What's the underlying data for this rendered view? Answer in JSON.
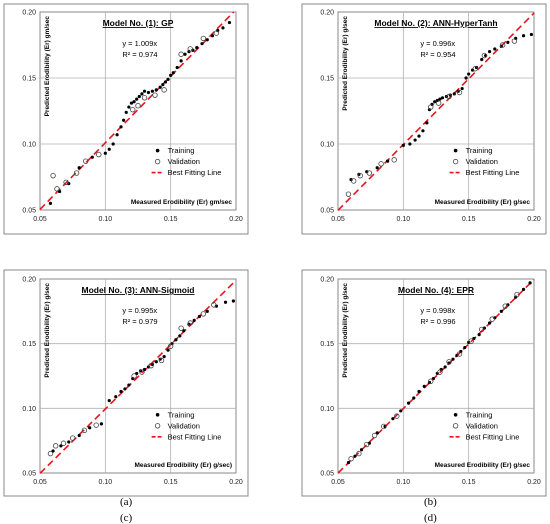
{
  "chart_data": [
    {
      "panel": "(a)",
      "type": "scatter",
      "title": "Model No. (1): GP",
      "xlabel": "Measured Erodibility (Er) gm/sec",
      "ylabel": "Predicted Erodibility (Er) gm/sec",
      "xlim": [
        0.05,
        0.2
      ],
      "ylim": [
        0.05,
        0.2
      ],
      "xticks": [
        "0.05",
        "0.10",
        "0.15",
        "0.20"
      ],
      "yticks": [
        "0.05",
        "0.10",
        "0.15",
        "0.20"
      ],
      "equation": "y = 1.009x",
      "r2": "R² = 0.974",
      "slope": 1.009,
      "grid": true,
      "legend": "bottom-right",
      "legend_entries": [
        "Training",
        "Validation",
        "Best Fitting Line"
      ],
      "series": [
        {
          "name": "Training",
          "marker": "filled",
          "points": [
            [
              0.058,
              0.055
            ],
            [
              0.065,
              0.064
            ],
            [
              0.072,
              0.07
            ],
            [
              0.08,
              0.082
            ],
            [
              0.09,
              0.09
            ],
            [
              0.1,
              0.093
            ],
            [
              0.103,
              0.096
            ],
            [
              0.106,
              0.1
            ],
            [
              0.109,
              0.107
            ],
            [
              0.112,
              0.113
            ],
            [
              0.114,
              0.118
            ],
            [
              0.116,
              0.124
            ],
            [
              0.118,
              0.128
            ],
            [
              0.12,
              0.131
            ],
            [
              0.122,
              0.132
            ],
            [
              0.124,
              0.134
            ],
            [
              0.126,
              0.136
            ],
            [
              0.128,
              0.138
            ],
            [
              0.13,
              0.14
            ],
            [
              0.133,
              0.139
            ],
            [
              0.136,
              0.14
            ],
            [
              0.139,
              0.141
            ],
            [
              0.142,
              0.143
            ],
            [
              0.144,
              0.145
            ],
            [
              0.146,
              0.147
            ],
            [
              0.148,
              0.149
            ],
            [
              0.15,
              0.152
            ],
            [
              0.152,
              0.154
            ],
            [
              0.155,
              0.158
            ],
            [
              0.158,
              0.163
            ],
            [
              0.161,
              0.168
            ],
            [
              0.164,
              0.17
            ],
            [
              0.167,
              0.171
            ],
            [
              0.17,
              0.173
            ],
            [
              0.174,
              0.176
            ],
            [
              0.178,
              0.179
            ],
            [
              0.182,
              0.182
            ],
            [
              0.186,
              0.186
            ],
            [
              0.19,
              0.188
            ],
            [
              0.195,
              0.192
            ]
          ]
        },
        {
          "name": "Validation",
          "marker": "hollow",
          "points": [
            [
              0.06,
              0.076
            ],
            [
              0.063,
              0.066
            ],
            [
              0.07,
              0.071
            ],
            [
              0.078,
              0.078
            ],
            [
              0.085,
              0.087
            ],
            [
              0.095,
              0.092
            ],
            [
              0.121,
              0.126
            ],
            [
              0.125,
              0.129
            ],
            [
              0.13,
              0.135
            ],
            [
              0.138,
              0.137
            ],
            [
              0.145,
              0.141
            ],
            [
              0.158,
              0.168
            ],
            [
              0.165,
              0.172
            ],
            [
              0.175,
              0.18
            ],
            [
              0.185,
              0.184
            ]
          ]
        }
      ]
    },
    {
      "panel": "(b)",
      "type": "scatter",
      "title": "Model No. (2): ANN-HyperTanh",
      "xlabel": "Measured Erodibility (Er) g/sec",
      "ylabel": "Predicted Erodibility (Er) g/sec",
      "xlim": [
        0.05,
        0.2
      ],
      "ylim": [
        0.05,
        0.2
      ],
      "xticks": [
        "0.05",
        "0.10",
        "0.15",
        "0.20"
      ],
      "yticks": [
        "0.05",
        "0.10",
        "0.15",
        "0.20"
      ],
      "equation": "y = 0.996x",
      "r2": "R² = 0.954",
      "slope": 0.996,
      "grid": true,
      "legend": "bottom-right",
      "legend_entries": [
        "Training",
        "Validation",
        "Best Fitting Line"
      ],
      "series": [
        {
          "name": "Training",
          "marker": "filled",
          "points": [
            [
              0.06,
              0.073
            ],
            [
              0.066,
              0.077
            ],
            [
              0.072,
              0.079
            ],
            [
              0.08,
              0.082
            ],
            [
              0.088,
              0.087
            ],
            [
              0.1,
              0.099
            ],
            [
              0.105,
              0.1
            ],
            [
              0.109,
              0.103
            ],
            [
              0.112,
              0.106
            ],
            [
              0.115,
              0.11
            ],
            [
              0.118,
              0.116
            ],
            [
              0.12,
              0.126
            ],
            [
              0.122,
              0.13
            ],
            [
              0.124,
              0.132
            ],
            [
              0.126,
              0.133
            ],
            [
              0.128,
              0.134
            ],
            [
              0.13,
              0.135
            ],
            [
              0.133,
              0.136
            ],
            [
              0.136,
              0.137
            ],
            [
              0.139,
              0.138
            ],
            [
              0.142,
              0.14
            ],
            [
              0.145,
              0.142
            ],
            [
              0.148,
              0.15
            ],
            [
              0.15,
              0.153
            ],
            [
              0.153,
              0.156
            ],
            [
              0.156,
              0.158
            ],
            [
              0.16,
              0.164
            ],
            [
              0.163,
              0.167
            ],
            [
              0.166,
              0.17
            ],
            [
              0.17,
              0.172
            ],
            [
              0.175,
              0.174
            ],
            [
              0.18,
              0.177
            ],
            [
              0.186,
              0.18
            ],
            [
              0.192,
              0.182
            ],
            [
              0.198,
              0.183
            ]
          ]
        },
        {
          "name": "Validation",
          "marker": "hollow",
          "points": [
            [
              0.058,
              0.062
            ],
            [
              0.062,
              0.072
            ],
            [
              0.067,
              0.076
            ],
            [
              0.074,
              0.078
            ],
            [
              0.083,
              0.085
            ],
            [
              0.093,
              0.088
            ],
            [
              0.121,
              0.128
            ],
            [
              0.127,
              0.131
            ],
            [
              0.135,
              0.136
            ],
            [
              0.143,
              0.139
            ],
            [
              0.155,
              0.157
            ],
            [
              0.162,
              0.167
            ],
            [
              0.176,
              0.175
            ],
            [
              0.185,
              0.178
            ]
          ]
        }
      ]
    },
    {
      "panel": "(c)",
      "type": "scatter",
      "title": "Model No. (3): ANN-Sigmoid",
      "xlabel": "Measured Erodibility (Er) g/sec)",
      "ylabel": "Predicted Erodibility (Er) g/sec",
      "xlim": [
        0.05,
        0.2
      ],
      "ylim": [
        0.05,
        0.2
      ],
      "xticks": [
        "0.05",
        "0.10",
        "0.15",
        "0.20"
      ],
      "yticks": [
        "0.05",
        "0.10",
        "0.15",
        "0.20"
      ],
      "equation": "y = 0.995x",
      "r2": "R² = 0.979",
      "slope": 0.995,
      "grid": true,
      "legend": "bottom-right",
      "legend_entries": [
        "Training",
        "Validation",
        "Best Fitting Line"
      ],
      "series": [
        {
          "name": "Training",
          "marker": "filled",
          "points": [
            [
              0.06,
              0.067
            ],
            [
              0.066,
              0.071
            ],
            [
              0.072,
              0.074
            ],
            [
              0.08,
              0.079
            ],
            [
              0.088,
              0.085
            ],
            [
              0.097,
              0.088
            ],
            [
              0.103,
              0.106
            ],
            [
              0.108,
              0.109
            ],
            [
              0.112,
              0.113
            ],
            [
              0.115,
              0.115
            ],
            [
              0.118,
              0.118
            ],
            [
              0.121,
              0.123
            ],
            [
              0.124,
              0.127
            ],
            [
              0.127,
              0.129
            ],
            [
              0.13,
              0.13
            ],
            [
              0.133,
              0.132
            ],
            [
              0.136,
              0.134
            ],
            [
              0.139,
              0.136
            ],
            [
              0.142,
              0.138
            ],
            [
              0.145,
              0.14
            ],
            [
              0.148,
              0.145
            ],
            [
              0.151,
              0.15
            ],
            [
              0.154,
              0.153
            ],
            [
              0.157,
              0.156
            ],
            [
              0.16,
              0.16
            ],
            [
              0.164,
              0.165
            ],
            [
              0.168,
              0.168
            ],
            [
              0.172,
              0.171
            ],
            [
              0.178,
              0.175
            ],
            [
              0.185,
              0.179
            ],
            [
              0.192,
              0.182
            ],
            [
              0.198,
              0.183
            ]
          ]
        },
        {
          "name": "Validation",
          "marker": "hollow",
          "points": [
            [
              0.058,
              0.065
            ],
            [
              0.062,
              0.071
            ],
            [
              0.068,
              0.073
            ],
            [
              0.075,
              0.077
            ],
            [
              0.084,
              0.083
            ],
            [
              0.093,
              0.087
            ],
            [
              0.122,
              0.125
            ],
            [
              0.128,
              0.128
            ],
            [
              0.135,
              0.133
            ],
            [
              0.143,
              0.137
            ],
            [
              0.15,
              0.148
            ],
            [
              0.158,
              0.162
            ],
            [
              0.165,
              0.166
            ],
            [
              0.175,
              0.173
            ],
            [
              0.183,
              0.18
            ]
          ]
        }
      ]
    },
    {
      "panel": "(d)",
      "type": "scatter",
      "title": "Model No. (4): EPR",
      "xlabel": "Measured Erodibility (Er) g/sec",
      "ylabel": "Predicted Erodibility (Er) g/sec",
      "xlim": [
        0.05,
        0.2
      ],
      "ylim": [
        0.05,
        0.2
      ],
      "xticks": [
        "0.05",
        "0.10",
        "0.15",
        "0.20"
      ],
      "yticks": [
        "0.05",
        "0.10",
        "0.15",
        "0.20"
      ],
      "equation": "y = 0.998x",
      "r2": "R² = 0.996",
      "slope": 0.998,
      "grid": true,
      "legend": "bottom-right",
      "legend_entries": [
        "Training",
        "Validation",
        "Best Fitting Line"
      ],
      "series": [
        {
          "name": "Training",
          "marker": "filled",
          "points": [
            [
              0.058,
              0.058
            ],
            [
              0.063,
              0.063
            ],
            [
              0.068,
              0.068
            ],
            [
              0.074,
              0.073
            ],
            [
              0.08,
              0.081
            ],
            [
              0.086,
              0.086
            ],
            [
              0.092,
              0.092
            ],
            [
              0.098,
              0.098
            ],
            [
              0.104,
              0.104
            ],
            [
              0.108,
              0.108
            ],
            [
              0.112,
              0.113
            ],
            [
              0.116,
              0.117
            ],
            [
              0.12,
              0.12
            ],
            [
              0.123,
              0.123
            ],
            [
              0.126,
              0.127
            ],
            [
              0.129,
              0.13
            ],
            [
              0.132,
              0.132
            ],
            [
              0.135,
              0.135
            ],
            [
              0.138,
              0.138
            ],
            [
              0.141,
              0.141
            ],
            [
              0.144,
              0.144
            ],
            [
              0.147,
              0.147
            ],
            [
              0.15,
              0.151
            ],
            [
              0.154,
              0.154
            ],
            [
              0.158,
              0.157
            ],
            [
              0.162,
              0.162
            ],
            [
              0.166,
              0.166
            ],
            [
              0.17,
              0.17
            ],
            [
              0.175,
              0.175
            ],
            [
              0.18,
              0.18
            ],
            [
              0.186,
              0.186
            ],
            [
              0.192,
              0.192
            ],
            [
              0.197,
              0.197
            ]
          ]
        },
        {
          "name": "Validation",
          "marker": "hollow",
          "points": [
            [
              0.06,
              0.061
            ],
            [
              0.066,
              0.065
            ],
            [
              0.072,
              0.072
            ],
            [
              0.078,
              0.079
            ],
            [
              0.085,
              0.086
            ],
            [
              0.095,
              0.094
            ],
            [
              0.121,
              0.121
            ],
            [
              0.128,
              0.128
            ],
            [
              0.135,
              0.136
            ],
            [
              0.143,
              0.142
            ],
            [
              0.152,
              0.152
            ],
            [
              0.16,
              0.161
            ],
            [
              0.168,
              0.169
            ],
            [
              0.178,
              0.179
            ],
            [
              0.187,
              0.188
            ]
          ]
        }
      ]
    }
  ]
}
